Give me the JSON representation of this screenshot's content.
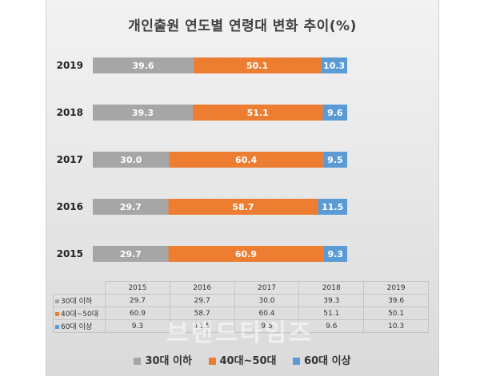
{
  "colors": {
    "s30": "#a6a6a6",
    "s40": "#ed7d31",
    "s60": "#5b9bd5"
  },
  "chart_data": {
    "type": "bar",
    "orientation": "horizontal",
    "stacked": true,
    "title": "개인출원 연도별 연령대 변화 추이(%)",
    "categories": [
      "2019",
      "2018",
      "2017",
      "2016",
      "2015"
    ],
    "series": [
      {
        "name": "30대 이하",
        "values": [
          39.6,
          39.3,
          30.0,
          29.7,
          29.7
        ]
      },
      {
        "name": "40대~50대",
        "values": [
          50.1,
          51.1,
          60.4,
          58.7,
          60.9
        ]
      },
      {
        "name": "60대 이상",
        "values": [
          10.3,
          9.6,
          9.5,
          11.5,
          9.3
        ]
      }
    ],
    "xlim": [
      0,
      100
    ],
    "legend_position": "bottom"
  },
  "table": {
    "years": [
      "2015",
      "2016",
      "2017",
      "2018",
      "2019"
    ],
    "rows": [
      {
        "label": "30대 이하",
        "values": [
          "29.7",
          "29.7",
          "30.0",
          "39.3",
          "39.6"
        ]
      },
      {
        "label": "40대~50대",
        "values": [
          "60.9",
          "58.7",
          "60.4",
          "51.1",
          "50.1"
        ]
      },
      {
        "label": "60대 이상",
        "values": [
          "9.3",
          "11.5",
          "9.5",
          "9.6",
          "10.3"
        ]
      }
    ]
  },
  "watermark": "브랜드타임즈"
}
